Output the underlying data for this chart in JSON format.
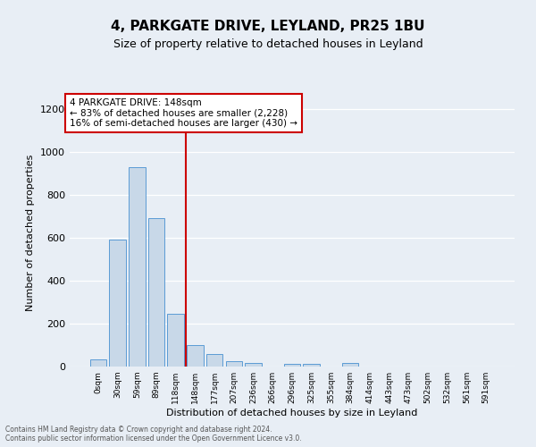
{
  "title": "4, PARKGATE DRIVE, LEYLAND, PR25 1BU",
  "subtitle": "Size of property relative to detached houses in Leyland",
  "xlabel": "Distribution of detached houses by size in Leyland",
  "ylabel": "Number of detached properties",
  "bar_labels": [
    "0sqm",
    "30sqm",
    "59sqm",
    "89sqm",
    "118sqm",
    "148sqm",
    "177sqm",
    "207sqm",
    "236sqm",
    "266sqm",
    "296sqm",
    "325sqm",
    "355sqm",
    "384sqm",
    "414sqm",
    "443sqm",
    "473sqm",
    "502sqm",
    "532sqm",
    "561sqm",
    "591sqm"
  ],
  "bar_values": [
    35,
    590,
    930,
    690,
    245,
    100,
    57,
    27,
    18,
    0,
    12,
    12,
    0,
    15,
    0,
    0,
    0,
    0,
    0,
    0,
    0
  ],
  "bar_color": "#c8d8e8",
  "bar_edge_color": "#5b9bd5",
  "vline_x_index": 4.5,
  "annotation_text_line1": "4 PARKGATE DRIVE: 148sqm",
  "annotation_text_line2": "← 83% of detached houses are smaller (2,228)",
  "annotation_text_line3": "16% of semi-detached houses are larger (430) →",
  "annotation_box_color": "#ffffff",
  "annotation_box_edge_color": "#cc0000",
  "vline_color": "#cc0000",
  "footer_line1": "Contains HM Land Registry data © Crown copyright and database right 2024.",
  "footer_line2": "Contains public sector information licensed under the Open Government Licence v3.0.",
  "ylim": [
    0,
    1250
  ],
  "yticks": [
    0,
    200,
    400,
    600,
    800,
    1000,
    1200
  ],
  "background_color": "#e8eef5",
  "grid_color": "#ffffff",
  "title_fontsize": 11,
  "subtitle_fontsize": 9
}
